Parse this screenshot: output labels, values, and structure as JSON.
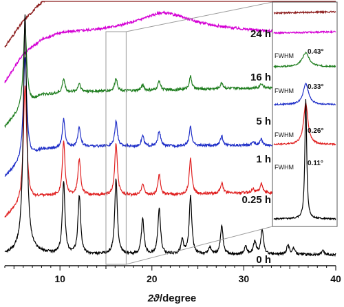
{
  "chart_data": {
    "type": "line",
    "title": "",
    "xlabel_italic": "2ϑ",
    "xlabel_rest": "/degree",
    "ylabel": "",
    "xlim": [
      4,
      40
    ],
    "x_ticks": [
      10,
      20,
      30,
      40
    ],
    "series": [
      {
        "name": "24 h",
        "color": "#8b1a1a",
        "peaks": [],
        "humps": [
          [
            23.5,
            0.7,
            4.0
          ]
        ],
        "baseline_points": [
          [
            4,
            0.4
          ],
          [
            6,
            2.6
          ],
          [
            8,
            4.2
          ],
          [
            10,
            5.1
          ],
          [
            13,
            5.4
          ],
          [
            16,
            5.7
          ],
          [
            20,
            6.6
          ],
          [
            23,
            7.0
          ],
          [
            27,
            6.3
          ],
          [
            31,
            5.5
          ],
          [
            35,
            5.1
          ],
          [
            40,
            4.8
          ]
        ]
      },
      {
        "name": "16 h",
        "color": "#d400d4",
        "peaks": [],
        "humps": [
          [
            21.5,
            0.6,
            3.5
          ]
        ],
        "baseline_points": [
          [
            4,
            0.4
          ],
          [
            6,
            2.8
          ],
          [
            8,
            4.0
          ],
          [
            10,
            4.6
          ],
          [
            14,
            4.9
          ],
          [
            18,
            5.3
          ],
          [
            21,
            5.7
          ],
          [
            25,
            5.3
          ],
          [
            30,
            4.9
          ],
          [
            35,
            4.6
          ],
          [
            40,
            4.4
          ]
        ]
      },
      {
        "name": "5 h",
        "color": "#1e7d1e",
        "peaks": [
          [
            6.2,
            7.0
          ],
          [
            10.4,
            1.2
          ],
          [
            12.1,
            0.7
          ],
          [
            16.1,
            1.1
          ],
          [
            19.0,
            0.5
          ],
          [
            20.8,
            0.8
          ],
          [
            24.2,
            1.1
          ],
          [
            27.6,
            0.5
          ],
          [
            31.9,
            0.4
          ]
        ],
        "humps": [],
        "baseline_points": [
          [
            4,
            0.5
          ],
          [
            5.5,
            1.7
          ],
          [
            8,
            3.2
          ],
          [
            12,
            3.5
          ],
          [
            20,
            3.6
          ],
          [
            30,
            3.8
          ],
          [
            40,
            3.9
          ]
        ]
      },
      {
        "name": "1 h",
        "color": "#1f2fc8",
        "peaks": [
          [
            6.2,
            8.8
          ],
          [
            10.4,
            2.4
          ],
          [
            12.1,
            1.6
          ],
          [
            16.1,
            2.2
          ],
          [
            19.0,
            0.9
          ],
          [
            20.8,
            1.3
          ],
          [
            24.2,
            1.6
          ],
          [
            27.6,
            0.8
          ],
          [
            31.0,
            0.3
          ],
          [
            31.9,
            0.5
          ]
        ],
        "humps": [],
        "baseline_points": [
          [
            4,
            0.4
          ],
          [
            5.5,
            1.4
          ],
          [
            8,
            2.7
          ],
          [
            12,
            3.0
          ],
          [
            20,
            3.0
          ],
          [
            30,
            3.1
          ],
          [
            40,
            3.1
          ]
        ]
      },
      {
        "name": "0.25 h",
        "color": "#e02020",
        "peaks": [
          [
            6.2,
            10.0
          ],
          [
            10.4,
            4.6
          ],
          [
            12.1,
            3.1
          ],
          [
            16.1,
            4.4
          ],
          [
            19.0,
            1.0
          ],
          [
            20.8,
            1.7
          ],
          [
            24.2,
            3.0
          ],
          [
            27.6,
            0.9
          ],
          [
            31.0,
            0.4
          ],
          [
            31.9,
            0.8
          ]
        ],
        "humps": [],
        "baseline_points": [
          [
            4,
            0.4
          ],
          [
            5.5,
            1.3
          ],
          [
            8,
            2.2
          ],
          [
            12,
            2.3
          ],
          [
            20,
            2.3
          ],
          [
            30,
            2.5
          ],
          [
            40,
            2.5
          ]
        ]
      },
      {
        "name": "0 h",
        "color": "#000000",
        "peaks": [
          [
            6.2,
            20.0
          ],
          [
            10.4,
            6.2
          ],
          [
            12.1,
            5.0
          ],
          [
            16.1,
            6.4
          ],
          [
            19.0,
            3.0
          ],
          [
            20.8,
            3.9
          ],
          [
            23.3,
            1.2
          ],
          [
            24.2,
            4.9
          ],
          [
            26.3,
            0.6
          ],
          [
            27.6,
            2.4
          ],
          [
            30.2,
            0.7
          ],
          [
            31.2,
            1.1
          ],
          [
            32.0,
            2.1
          ],
          [
            34.8,
            0.8
          ],
          [
            35.4,
            0.5
          ],
          [
            38.6,
            0.3
          ]
        ],
        "humps": [],
        "baseline_points": [
          [
            4,
            0.3
          ],
          [
            6,
            0.6
          ],
          [
            10,
            0.3
          ],
          [
            20,
            0.3
          ],
          [
            30,
            0.3
          ],
          [
            40,
            0.3
          ]
        ]
      }
    ],
    "inset_fwhm": [
      {
        "series": "24 h",
        "label": "",
        "value": ""
      },
      {
        "series": "16 h",
        "label": "",
        "value": ""
      },
      {
        "series": "5 h",
        "label": "FWHM",
        "value": "0.43°"
      },
      {
        "series": "1 h",
        "label": "FWHM",
        "value": "0.33°"
      },
      {
        "series": "0.25 h",
        "label": "FWHM",
        "value": "0.26°"
      },
      {
        "series": "0 h",
        "label": "FWHM",
        "value": "0.11°"
      }
    ],
    "zoom_window_x": [
      15,
      17.2
    ],
    "grid": false,
    "legend": "none"
  }
}
